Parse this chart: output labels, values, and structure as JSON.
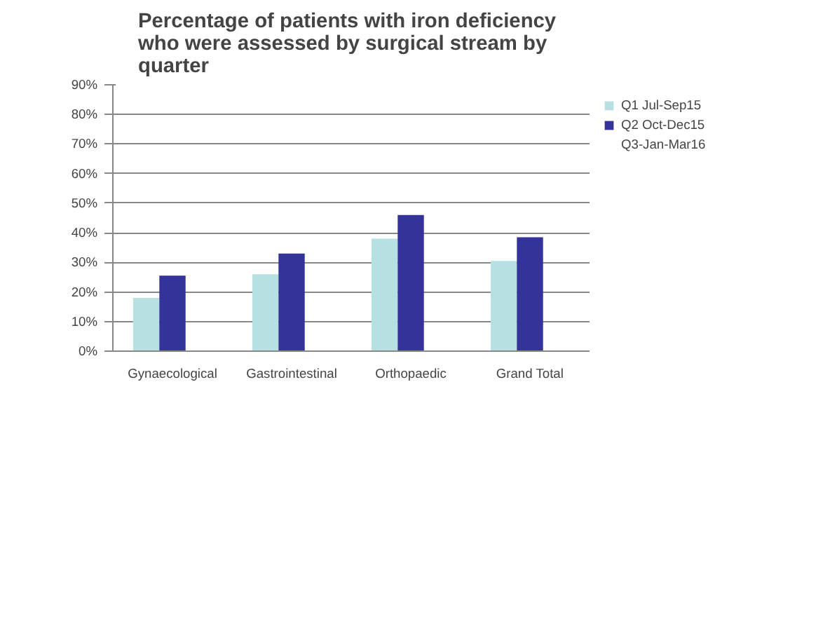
{
  "chart_data": {
    "type": "bar",
    "title": "Percentage of patients with iron deficiency\nwho were assessed by surgical stream by\nquarter",
    "categories": [
      "Gynaecological",
      "Gastrointestinal",
      "Orthopaedic",
      "Grand Total"
    ],
    "series": [
      {
        "name": "Q1 Jul-Sep15",
        "color": "#b7e0e2",
        "values": [
          18,
          26,
          38,
          30.5
        ]
      },
      {
        "name": "Q2 Oct-Dec15",
        "color": "#333399",
        "values": [
          25.5,
          33,
          46,
          38.5
        ]
      },
      {
        "name": "Q3-Jan-Mar16",
        "values": [
          null,
          null,
          null,
          null
        ]
      }
    ],
    "ylim": [
      0,
      90
    ],
    "yticks": [
      {
        "value": 0,
        "label": "0%"
      },
      {
        "value": 10,
        "label": "10%"
      },
      {
        "value": 20,
        "label": "20%"
      },
      {
        "value": 30,
        "label": "30%"
      },
      {
        "value": 40,
        "label": "40%"
      },
      {
        "value": 50,
        "label": "50%"
      },
      {
        "value": 60,
        "label": "60%"
      },
      {
        "value": 70,
        "label": "70%"
      },
      {
        "value": 80,
        "label": "80%"
      },
      {
        "value": 90,
        "label": "90%"
      }
    ],
    "grid": "y",
    "legend": "right"
  }
}
